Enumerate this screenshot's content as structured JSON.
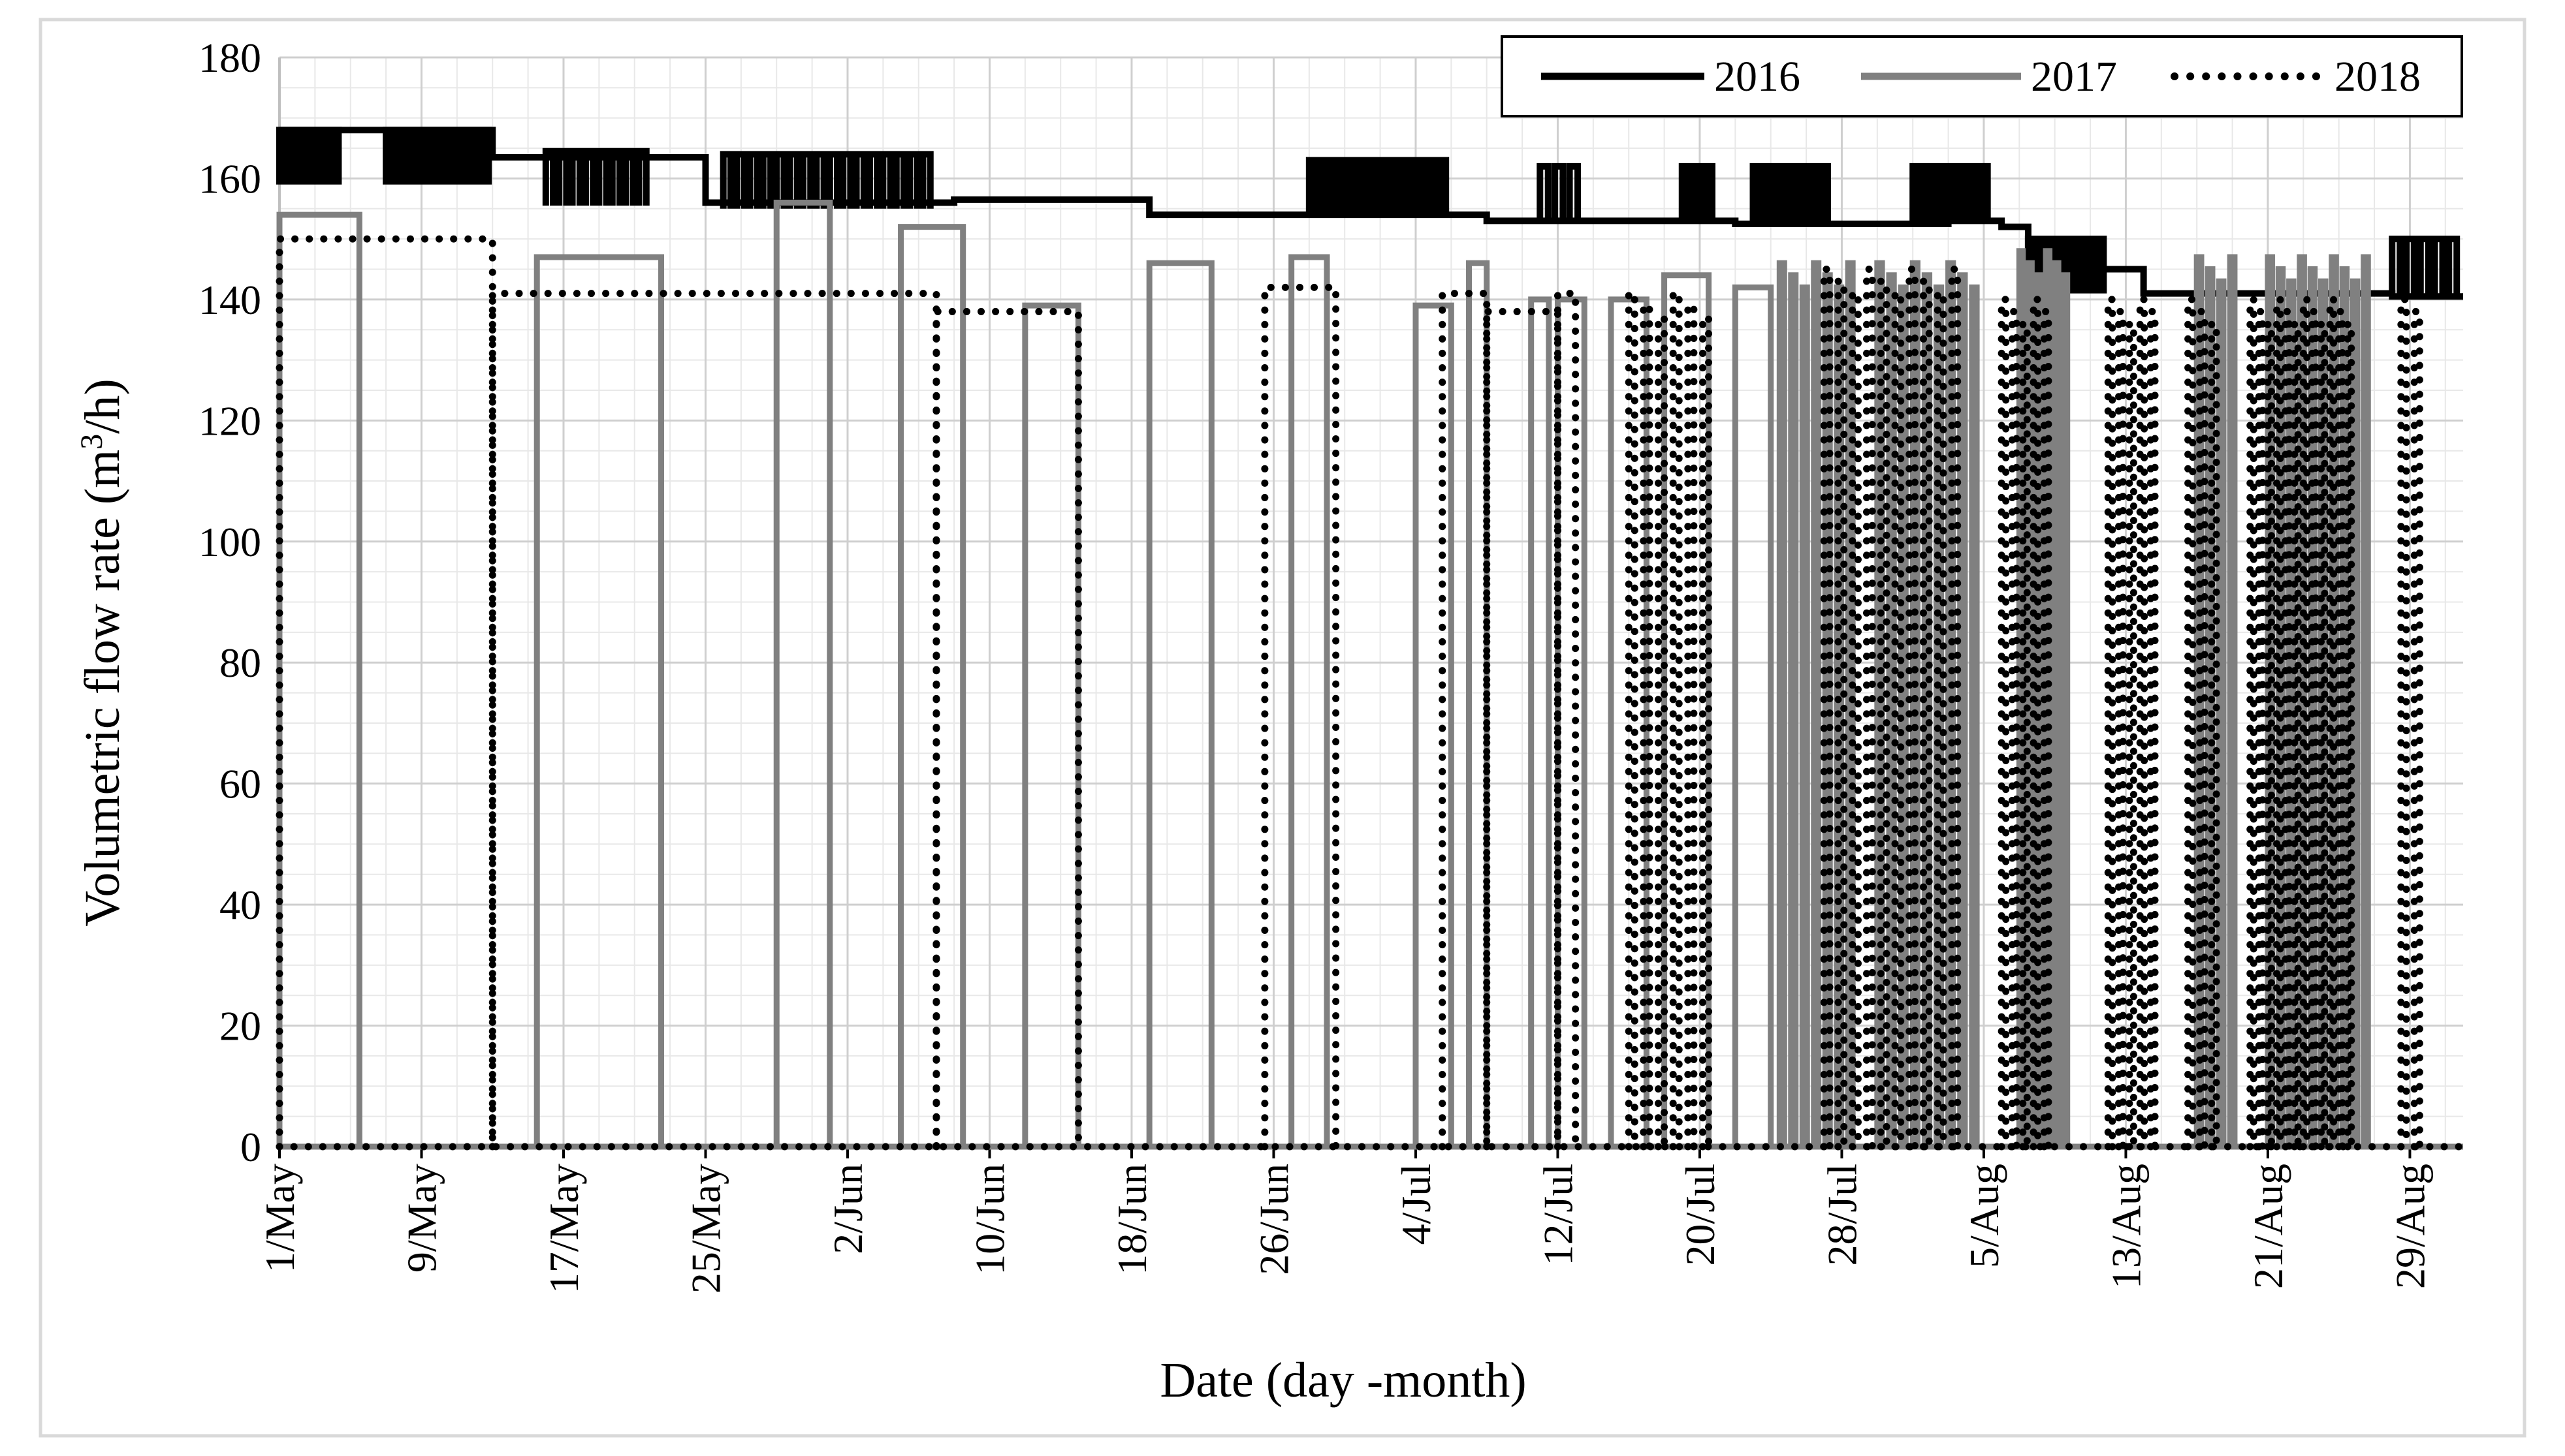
{
  "chart_data": {
    "type": "line",
    "title": "",
    "xlabel": "Date (day -month)",
    "ylabel_main": "Volumetric flow rate (m",
    "ylabel_sup": "3",
    "ylabel_tail": "/h)",
    "xlim": [
      0,
      123
    ],
    "ylim": [
      0,
      180
    ],
    "yticks": [
      0,
      20,
      40,
      60,
      80,
      100,
      120,
      140,
      160,
      180
    ],
    "xticks": [
      {
        "day": 0,
        "label": "1/May"
      },
      {
        "day": 8,
        "label": "9/May"
      },
      {
        "day": 16,
        "label": "17/May"
      },
      {
        "day": 24,
        "label": "25/May"
      },
      {
        "day": 32,
        "label": "2/Jun"
      },
      {
        "day": 40,
        "label": "10/Jun"
      },
      {
        "day": 48,
        "label": "18/Jun"
      },
      {
        "day": 56,
        "label": "26/Jun"
      },
      {
        "day": 64,
        "label": "4/Jul"
      },
      {
        "day": 72,
        "label": "12/Jul"
      },
      {
        "day": 80,
        "label": "20/Jul"
      },
      {
        "day": 88,
        "label": "28/Jul"
      },
      {
        "day": 96,
        "label": "5/Aug"
      },
      {
        "day": 104,
        "label": "13/Aug"
      },
      {
        "day": 112,
        "label": "21/Aug"
      },
      {
        "day": 120,
        "label": "29/Aug"
      }
    ],
    "grid": true,
    "legend_position": "top-right",
    "series": [
      {
        "name": "2016",
        "color": "#000000",
        "style": "solid",
        "base_levels": [
          [
            0,
            168
          ],
          [
            12,
            163.5
          ],
          [
            24,
            156
          ],
          [
            31,
            156
          ],
          [
            38,
            156.5
          ],
          [
            49,
            154
          ],
          [
            58,
            154
          ],
          [
            68,
            153
          ],
          [
            82,
            152.5
          ],
          [
            94,
            153
          ],
          [
            97,
            152
          ],
          [
            98.5,
            145
          ],
          [
            105,
            141
          ],
          [
            118,
            141
          ],
          [
            119,
            140.5
          ],
          [
            123,
            140.5
          ]
        ],
        "spike_bands": [
          {
            "start": 0,
            "end": 3.5,
            "level": 168,
            "count": 9
          },
          {
            "start": 6,
            "end": 12,
            "level": 168,
            "count": 12
          },
          {
            "start": 15,
            "end": 21,
            "level": 164.5,
            "count": 8
          },
          {
            "start": 25,
            "end": 37,
            "level": 164,
            "count": 16
          },
          {
            "start": 58,
            "end": 66,
            "level": 163,
            "count": 12
          },
          {
            "start": 71,
            "end": 73.5,
            "level": 162,
            "count": 3
          },
          {
            "start": 79,
            "end": 81,
            "level": 162,
            "count": 3
          },
          {
            "start": 83,
            "end": 87.5,
            "level": 162,
            "count": 7
          },
          {
            "start": 92,
            "end": 96.5,
            "level": 162,
            "count": 7
          },
          {
            "start": 98.5,
            "end": 103,
            "level": 150,
            "count": 8
          },
          {
            "start": 119,
            "end": 123,
            "level": 150,
            "count": 5
          }
        ]
      },
      {
        "name": "2017",
        "color": "#808080",
        "style": "solid",
        "segments": [
          [
            0,
            4.5,
            154
          ],
          [
            14.5,
            21.5,
            147
          ],
          [
            28,
            31,
            156
          ],
          [
            35,
            38.5,
            152
          ],
          [
            42,
            45,
            139
          ],
          [
            49,
            52.5,
            146
          ],
          [
            57,
            59,
            147
          ],
          [
            64,
            66,
            139
          ],
          [
            67,
            68,
            146
          ],
          [
            70.5,
            71.5,
            140
          ],
          [
            72,
            73.5,
            140
          ],
          [
            75,
            77,
            140
          ],
          [
            78,
            80.5,
            144
          ],
          [
            82,
            84,
            142
          ]
        ],
        "dense_bands": [
          {
            "start": 84.5,
            "end": 89,
            "level": 146,
            "count": 7
          },
          {
            "start": 90,
            "end": 96,
            "level": 146,
            "count": 9
          },
          {
            "start": 98,
            "end": 101,
            "level": 148,
            "count": 6
          },
          {
            "start": 108,
            "end": 110.5,
            "level": 147,
            "count": 4
          },
          {
            "start": 112,
            "end": 118,
            "level": 147,
            "count": 10
          }
        ]
      },
      {
        "name": "2018",
        "color": "#000000",
        "style": "dotted",
        "segments": [
          [
            0,
            12,
            150
          ],
          [
            12,
            37,
            141
          ],
          [
            37,
            45,
            138
          ],
          [
            55.5,
            59.5,
            142
          ],
          [
            65.5,
            68,
            141
          ],
          [
            68,
            72,
            138
          ],
          [
            72,
            73,
            141
          ]
        ],
        "dense_bands": [
          {
            "start": 76,
            "end": 81,
            "level": 141,
            "count": 6
          },
          {
            "start": 87,
            "end": 95,
            "level": 145,
            "count": 10
          },
          {
            "start": 97,
            "end": 100,
            "level": 140,
            "count": 5
          },
          {
            "start": 103,
            "end": 106,
            "level": 140,
            "count": 5
          },
          {
            "start": 107.5,
            "end": 109.5,
            "level": 140,
            "count": 3
          },
          {
            "start": 111,
            "end": 117,
            "level": 140,
            "count": 12
          },
          {
            "start": 119.5,
            "end": 121,
            "level": 140,
            "count": 2
          }
        ]
      }
    ]
  }
}
